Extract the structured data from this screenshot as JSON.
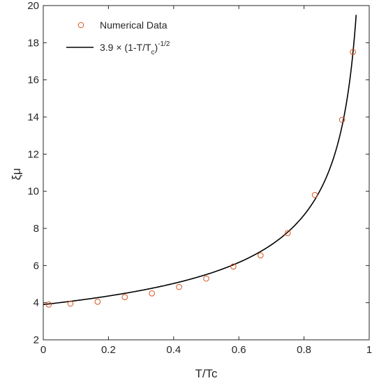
{
  "chart_data": {
    "type": "scatter",
    "xlabel": "T/Tc",
    "ylabel": "ξμ",
    "xlim": [
      0,
      1
    ],
    "ylim": [
      2,
      20
    ],
    "xticks": [
      {
        "value": 0,
        "label": "0"
      },
      {
        "value": 0.2,
        "label": "0.2"
      },
      {
        "value": 0.4,
        "label": "0.4"
      },
      {
        "value": 0.6,
        "label": "0.6"
      },
      {
        "value": 0.8,
        "label": "0.8"
      },
      {
        "value": 1,
        "label": "1"
      }
    ],
    "yticks": [
      {
        "value": 2,
        "label": "2"
      },
      {
        "value": 4,
        "label": "4"
      },
      {
        "value": 6,
        "label": "6"
      },
      {
        "value": 8,
        "label": "8"
      },
      {
        "value": 10,
        "label": "10"
      },
      {
        "value": 12,
        "label": "12"
      },
      {
        "value": 14,
        "label": "14"
      },
      {
        "value": 16,
        "label": "16"
      },
      {
        "value": 18,
        "label": "18"
      },
      {
        "value": 20,
        "label": "20"
      }
    ],
    "grid": false,
    "legend_position": "top-left",
    "series": [
      {
        "name": "Numerical Data",
        "kind": "scatter",
        "marker": "open-circle",
        "color": "#d95319",
        "x": [
          0.0167,
          0.0833,
          0.1667,
          0.25,
          0.3333,
          0.4167,
          0.5,
          0.5833,
          0.6667,
          0.75,
          0.8333,
          0.9167,
          0.95
        ],
        "y": [
          3.9,
          3.95,
          4.05,
          4.3,
          4.5,
          4.85,
          5.3,
          5.95,
          6.55,
          7.75,
          9.8,
          13.85,
          17.5
        ]
      },
      {
        "name": "3.9 × (1-T/Tc)^-1/2",
        "legend_parts": {
          "lead": "3.9 × (1-T/T",
          "subscript": "c",
          "close": ")",
          "superscript": "-1/2"
        },
        "kind": "line",
        "color": "#000000",
        "function": {
          "amplitude": 3.9,
          "exponent": -0.5,
          "x_start": 0,
          "x_end": 0.96
        }
      }
    ]
  }
}
